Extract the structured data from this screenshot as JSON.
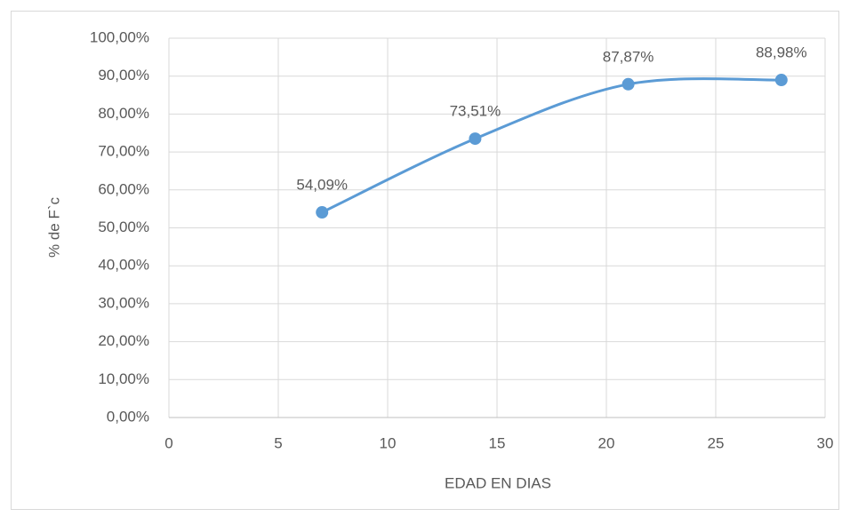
{
  "chart_data": {
    "type": "line",
    "x": [
      7,
      14,
      21,
      28
    ],
    "series": [
      {
        "color": "#5b9bd5",
        "values": [
          54.09,
          73.51,
          87.87,
          88.98
        ],
        "value_labels": [
          "54,09%",
          "73,51%",
          "87,87%",
          "88,98%"
        ]
      }
    ],
    "xlabel": "EDAD EN DIAS",
    "ylabel": "% de F`c",
    "xlim": [
      0,
      30
    ],
    "xticks": [
      0,
      5,
      10,
      15,
      20,
      25,
      30
    ],
    "ylim": [
      0,
      100
    ],
    "yticks": [
      {
        "value": 0,
        "label": "0,00%"
      },
      {
        "value": 10,
        "label": "10,00%"
      },
      {
        "value": 20,
        "label": "20,00%"
      },
      {
        "value": 30,
        "label": "30,00%"
      },
      {
        "value": 40,
        "label": "40,00%"
      },
      {
        "value": 50,
        "label": "50,00%"
      },
      {
        "value": 60,
        "label": "60,00%"
      },
      {
        "value": 70,
        "label": "70,00%"
      },
      {
        "value": 80,
        "label": "80,00%"
      },
      {
        "value": 90,
        "label": "90,00%"
      },
      {
        "value": 100,
        "label": "100,00%"
      }
    ],
    "grid": true,
    "smooth": true
  }
}
